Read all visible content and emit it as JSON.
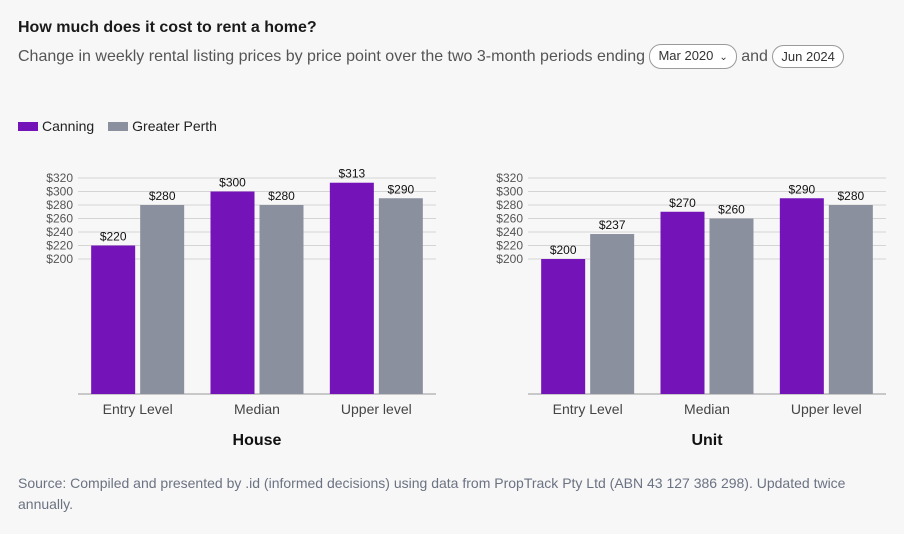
{
  "header": {
    "title": "How much does it cost to rent a home?",
    "subtitle_start": "Change in weekly rental listing prices by price point over the two 3-month periods ending",
    "period1": "Mar 2020",
    "subtitle_and": "and",
    "period2": "Jun 2024"
  },
  "legend": [
    {
      "label": "Canning",
      "color": "#7413b8"
    },
    {
      "label": "Greater Perth",
      "color": "#8b909f"
    }
  ],
  "chart_data": [
    {
      "type": "bar",
      "title": "House",
      "categories": [
        "Entry Level",
        "Median",
        "Upper level"
      ],
      "series": [
        {
          "name": "Canning",
          "values": [
            220,
            300,
            313
          ],
          "labels": [
            "$220",
            "$300",
            "$313"
          ]
        },
        {
          "name": "Greater Perth",
          "values": [
            280,
            280,
            290
          ],
          "labels": [
            "$280",
            "$280",
            "$290"
          ]
        }
      ],
      "yticks": [
        "$320",
        "$300",
        "$280",
        "$260",
        "$240",
        "$220",
        "$200"
      ],
      "ylim": [
        0,
        320
      ]
    },
    {
      "type": "bar",
      "title": "Unit",
      "categories": [
        "Entry Level",
        "Median",
        "Upper level"
      ],
      "series": [
        {
          "name": "Canning",
          "values": [
            200,
            270,
            290
          ],
          "labels": [
            "$200",
            "$270",
            "$290"
          ]
        },
        {
          "name": "Greater Perth",
          "values": [
            237,
            260,
            280
          ],
          "labels": [
            "$237",
            "$260",
            "$280"
          ]
        }
      ],
      "yticks": [
        "$320",
        "$300",
        "$280",
        "$260",
        "$240",
        "$220",
        "$200"
      ],
      "ylim": [
        0,
        320
      ]
    }
  ],
  "source": "Source: Compiled and presented by .id (informed decisions) using data from PropTrack Pty Ltd (ABN 43 127 386 298). Updated twice annually."
}
